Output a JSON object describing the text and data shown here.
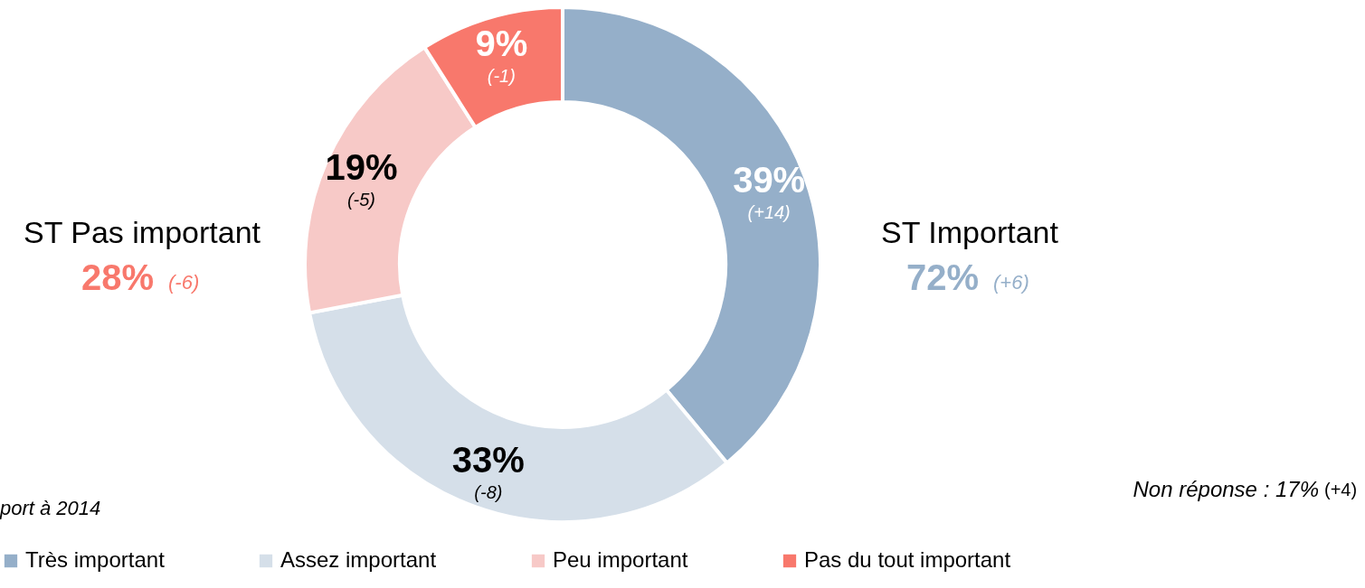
{
  "chart_data": {
    "type": "donut",
    "categories": [
      "Très important",
      "Assez important",
      "Peu important",
      "Pas du tout important"
    ],
    "values": [
      39,
      33,
      19,
      9
    ],
    "colors": [
      "#95afc9",
      "#d5dfe9",
      "#f7c9c7",
      "#f8786c"
    ],
    "value_labels": [
      "39%",
      "33%",
      "19%",
      "9%"
    ],
    "annotations": [
      "(+14)",
      "(-8)",
      "(-5)",
      "(-1)",
      "ST Important",
      "72%",
      "(+6)",
      "ST Pas important",
      "28%",
      "(-6)",
      "Non réponse : 17%",
      "(+4)",
      "port à 2014"
    ],
    "legend": "bottom"
  }
}
